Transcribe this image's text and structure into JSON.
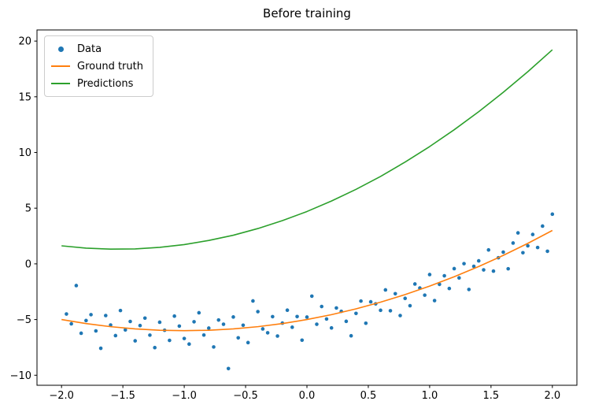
{
  "chart_data": {
    "type": "scatter",
    "title": "Before training",
    "xlabel": "",
    "ylabel": "",
    "xlim": [
      -2.2,
      2.2
    ],
    "ylim": [
      -10.9,
      21.0
    ],
    "grid": false,
    "legend_position": "upper left",
    "xticks": [
      -2.0,
      -1.5,
      -1.0,
      -0.5,
      0.0,
      0.5,
      1.0,
      1.5,
      2.0
    ],
    "xtick_labels": [
      "−2.0",
      "−1.5",
      "−1.0",
      "−0.5",
      "0.0",
      "0.5",
      "1.0",
      "1.5",
      "2.0"
    ],
    "yticks": [
      -10,
      -5,
      0,
      5,
      10,
      15,
      20
    ],
    "ytick_labels": [
      "−10",
      "−5",
      "0",
      "5",
      "10",
      "15",
      "20"
    ],
    "series": [
      {
        "name": "Data",
        "type": "scatter",
        "color": "#1f77b4",
        "x": [
          -1.96,
          -1.92,
          -1.88,
          -1.84,
          -1.8,
          -1.76,
          -1.72,
          -1.68,
          -1.64,
          -1.6,
          -1.56,
          -1.52,
          -1.48,
          -1.44,
          -1.4,
          -1.36,
          -1.32,
          -1.28,
          -1.24,
          -1.2,
          -1.16,
          -1.12,
          -1.08,
          -1.04,
          -1.0,
          -0.96,
          -0.92,
          -0.88,
          -0.84,
          -0.8,
          -0.76,
          -0.72,
          -0.68,
          -0.64,
          -0.6,
          -0.56,
          -0.52,
          -0.48,
          -0.44,
          -0.4,
          -0.36,
          -0.32,
          -0.28,
          -0.24,
          -0.2,
          -0.16,
          -0.12,
          -0.08,
          -0.04,
          0.0,
          0.04,
          0.08,
          0.12,
          0.16,
          0.2,
          0.24,
          0.28,
          0.32,
          0.36,
          0.4,
          0.44,
          0.48,
          0.52,
          0.56,
          0.6,
          0.64,
          0.68,
          0.72,
          0.76,
          0.8,
          0.84,
          0.88,
          0.92,
          0.96,
          1.0,
          1.04,
          1.08,
          1.12,
          1.16,
          1.2,
          1.24,
          1.28,
          1.32,
          1.36,
          1.4,
          1.44,
          1.48,
          1.52,
          1.56,
          1.6,
          1.64,
          1.68,
          1.72,
          1.76,
          1.8,
          1.84,
          1.88,
          1.92,
          1.96,
          2.0
        ],
        "y": [
          -4.5,
          -5.38,
          -1.95,
          -6.23,
          -5.09,
          -4.56,
          -6.02,
          -7.58,
          -4.64,
          -5.49,
          -6.44,
          -4.19,
          -5.93,
          -5.17,
          -6.91,
          -5.54,
          -4.87,
          -6.4,
          -7.52,
          -5.24,
          -5.96,
          -6.87,
          -4.69,
          -5.59,
          -6.7,
          -7.2,
          -5.2,
          -4.39,
          -6.39,
          -5.77,
          -7.46,
          -5.04,
          -5.42,
          -9.4,
          -4.77,
          -6.64,
          -5.51,
          -7.07,
          -3.33,
          -4.29,
          -5.84,
          -6.19,
          -4.74,
          -6.48,
          -5.32,
          -4.16,
          -5.69,
          -4.73,
          -6.85,
          -4.78,
          -2.9,
          -5.42,
          -3.83,
          -4.95,
          -5.75,
          -3.96,
          -4.26,
          -5.16,
          -6.46,
          -4.45,
          -3.34,
          -5.33,
          -3.41,
          -3.59,
          -4.17,
          -2.34,
          -4.21,
          -2.68,
          -4.64,
          -3.1,
          -3.76,
          -1.81,
          -2.17,
          -2.81,
          -0.96,
          -3.3,
          -1.84,
          -1.07,
          -2.21,
          -0.43,
          -1.26,
          0.02,
          -2.3,
          -0.22,
          0.27,
          -0.54,
          1.25,
          -0.65,
          0.55,
          1.05,
          -0.44,
          1.87,
          2.78,
          1.0,
          1.62,
          2.64,
          1.47,
          3.39,
          1.13,
          4.46
        ]
      },
      {
        "name": "Ground truth",
        "type": "line",
        "color": "#ff7f0e",
        "x": [
          -2.0,
          -1.8,
          -1.6,
          -1.4,
          -1.2,
          -1.0,
          -0.8,
          -0.6,
          -0.4,
          -0.2,
          0.0,
          0.2,
          0.4,
          0.6,
          0.8,
          1.0,
          1.2,
          1.4,
          1.6,
          1.8,
          2.0
        ],
        "y": [
          -5.0,
          -5.36,
          -5.64,
          -5.84,
          -5.96,
          -6.0,
          -5.96,
          -5.84,
          -5.64,
          -5.36,
          -5.0,
          -4.56,
          -4.04,
          -3.44,
          -2.76,
          -2.0,
          -1.16,
          -0.24,
          0.76,
          1.84,
          3.0
        ]
      },
      {
        "name": "Predictions",
        "type": "line",
        "color": "#2ca02c",
        "x": [
          -2.0,
          -1.8,
          -1.6,
          -1.4,
          -1.2,
          -1.0,
          -0.8,
          -0.6,
          -0.4,
          -0.2,
          0.0,
          0.2,
          0.4,
          0.6,
          0.8,
          1.0,
          1.2,
          1.4,
          1.6,
          1.8,
          2.0
        ],
        "y": [
          1.62,
          1.41,
          1.32,
          1.34,
          1.48,
          1.73,
          2.1,
          2.57,
          3.17,
          3.88,
          4.7,
          5.64,
          6.69,
          7.85,
          9.14,
          10.53,
          12.04,
          13.66,
          15.4,
          17.25,
          19.22
        ]
      }
    ]
  }
}
